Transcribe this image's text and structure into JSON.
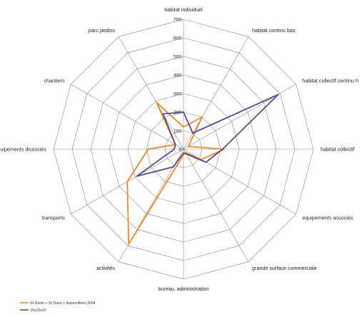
{
  "chart_data": {
    "type": "radar",
    "categories": [
      "habitat individuel",
      "habitat continu bas",
      "habitat collectif continu h",
      "habitat collectif",
      "equipements associés",
      "grande surface commerciale",
      "bureau, administration",
      "activités",
      "transports",
      "equipements dissociés",
      "chantiers",
      "parc jardins"
    ],
    "rlim": [
      0,
      700
    ],
    "ticks": [
      0,
      100,
      200,
      300,
      400,
      500,
      600,
      700
    ],
    "grid": true,
    "legend_position": "bottom-left",
    "series": [
      {
        "name": "St-Denis + St Ouen + Aubervilliers 2004",
        "color": "#f0892c",
        "values": [
          120,
          200,
          30,
          220,
          110,
          20,
          30,
          590,
          350,
          190,
          50,
          290
        ]
      },
      {
        "name": "15x10x20",
        "color": "#5b4a9a",
        "values": [
          200,
          100,
          590,
          210,
          140,
          30,
          20,
          110,
          290,
          50,
          50,
          220
        ]
      }
    ]
  }
}
